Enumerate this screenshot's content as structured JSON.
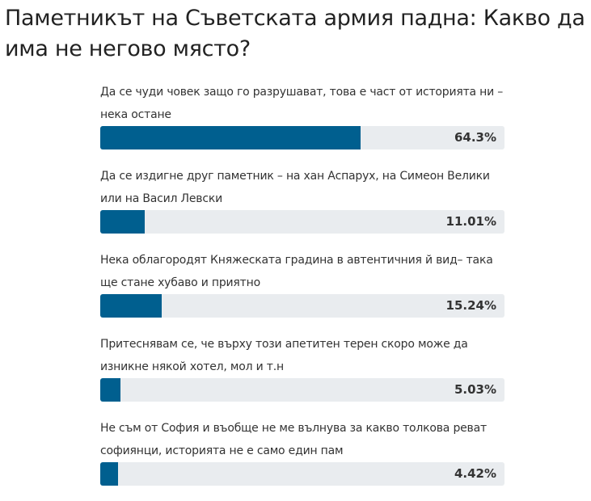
{
  "poll": {
    "title": "Паметникът на Съветската армия падна: Какво да има не негово място?",
    "bar_color": "#005f8f",
    "track_color": "#e9ecef",
    "options": [
      {
        "label": "Да се чуди човек защо го разрушават, това е част от историята ни – нека остане",
        "percent": 64.3,
        "percent_label": "64.3%"
      },
      {
        "label": "Да се издигне друг паметник – на хан Аспарух, на Симеон Велики или на Васил Левски",
        "percent": 11.01,
        "percent_label": "11.01%"
      },
      {
        "label": "Нека облагородят Княжеската градина в автентичния й вид– така ще стане хубаво и приятно",
        "percent": 15.24,
        "percent_label": "15.24%"
      },
      {
        "label": "Притеснявам се, че върху този апетитен терен скоро може да изникне някой хотел, мол и т.н",
        "percent": 5.03,
        "percent_label": "5.03%"
      },
      {
        "label": "Не съм от София и въобще не ме вълнува за какво толкова реват софиянци, историята не е само един пам",
        "percent": 4.42,
        "percent_label": "4.42%"
      }
    ]
  }
}
